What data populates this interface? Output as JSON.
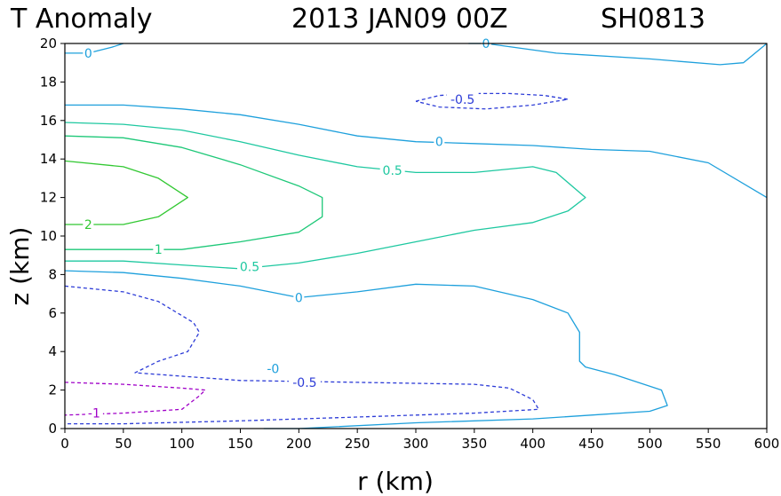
{
  "chart_data": {
    "type": "contour",
    "title": "T Anomaly",
    "datetime": "2013 JAN09 00Z",
    "storm_id": "SH0813",
    "xlabel": "r (km)",
    "ylabel": "z (km)",
    "xlim": [
      0,
      600
    ],
    "ylim": [
      0,
      20
    ],
    "x_ticks": [
      0,
      50,
      100,
      150,
      200,
      250,
      300,
      350,
      400,
      450,
      500,
      550,
      600
    ],
    "x_tick_labels": [
      "0",
      "50",
      "100",
      "150",
      "200",
      "250",
      "300",
      "350",
      "400",
      "450",
      "500",
      "550",
      "600"
    ],
    "y_ticks": [
      0,
      2,
      4,
      6,
      8,
      10,
      12,
      14,
      16,
      18,
      20
    ],
    "y_tick_labels": [
      "0",
      "2",
      "4",
      "6",
      "8",
      "10",
      "12",
      "14",
      "16",
      "18",
      "20"
    ],
    "colors": {
      "neg1": "#a000c8",
      "neg05": "#2d3cd7",
      "zero": "#1ea0dc",
      "pos05": "#1ec8a0",
      "pos1": "#1ec878",
      "pos2": "#32c832"
    },
    "contours": [
      {
        "name": "zero-top-left",
        "level": 0,
        "color_key": "zero",
        "dashed": false,
        "points": [
          [
            0,
            19.5
          ],
          [
            20,
            19.5
          ],
          [
            40,
            19.8
          ],
          [
            50,
            20
          ]
        ]
      },
      {
        "name": "zero-top-right",
        "level": 0,
        "color_key": "zero",
        "dashed": false,
        "points": [
          [
            345,
            20
          ],
          [
            360,
            20
          ],
          [
            420,
            19.5
          ],
          [
            500,
            19.2
          ],
          [
            560,
            18.9
          ],
          [
            580,
            19
          ],
          [
            600,
            20
          ]
        ]
      },
      {
        "name": "neg05-upper",
        "level": -0.5,
        "color_key": "neg05",
        "dashed": true,
        "points": [
          [
            300,
            17
          ],
          [
            320,
            17.3
          ],
          [
            350,
            17.4
          ],
          [
            380,
            17.4
          ],
          [
            410,
            17.3
          ],
          [
            430,
            17.1
          ],
          [
            400,
            16.8
          ],
          [
            360,
            16.6
          ],
          [
            320,
            16.7
          ],
          [
            300,
            17
          ]
        ]
      },
      {
        "name": "zero-upper",
        "level": 0,
        "color_key": "zero",
        "dashed": false,
        "points": [
          [
            0,
            16.8
          ],
          [
            50,
            16.8
          ],
          [
            100,
            16.6
          ],
          [
            150,
            16.3
          ],
          [
            200,
            15.8
          ],
          [
            250,
            15.2
          ],
          [
            300,
            14.9
          ],
          [
            350,
            14.8
          ],
          [
            400,
            14.7
          ],
          [
            450,
            14.5
          ],
          [
            500,
            14.4
          ],
          [
            550,
            13.8
          ],
          [
            600,
            12
          ]
        ]
      },
      {
        "name": "pos05-upper",
        "level": 0.5,
        "color_key": "pos05",
        "dashed": false,
        "points": [
          [
            0,
            15.9
          ],
          [
            50,
            15.8
          ],
          [
            100,
            15.5
          ],
          [
            150,
            14.9
          ],
          [
            200,
            14.2
          ],
          [
            250,
            13.6
          ],
          [
            300,
            13.3
          ],
          [
            350,
            13.3
          ],
          [
            400,
            13.6
          ],
          [
            420,
            13.3
          ],
          [
            445,
            12
          ],
          [
            430,
            11.3
          ],
          [
            400,
            10.7
          ],
          [
            350,
            10.3
          ],
          [
            300,
            9.7
          ],
          [
            250,
            9.1
          ],
          [
            200,
            8.6
          ],
          [
            150,
            8.3
          ],
          [
            100,
            8.5
          ],
          [
            50,
            8.7
          ],
          [
            0,
            8.7
          ]
        ]
      },
      {
        "name": "pos1",
        "level": 1,
        "color_key": "pos1",
        "dashed": false,
        "points": [
          [
            0,
            15.2
          ],
          [
            50,
            15.1
          ],
          [
            100,
            14.6
          ],
          [
            150,
            13.7
          ],
          [
            200,
            12.6
          ],
          [
            220,
            12
          ],
          [
            220,
            11
          ],
          [
            200,
            10.2
          ],
          [
            150,
            9.7
          ],
          [
            100,
            9.3
          ],
          [
            50,
            9.3
          ],
          [
            0,
            9.3
          ]
        ]
      },
      {
        "name": "pos2",
        "level": 2,
        "color_key": "pos2",
        "dashed": false,
        "points": [
          [
            0,
            13.9
          ],
          [
            50,
            13.6
          ],
          [
            80,
            13
          ],
          [
            105,
            12
          ],
          [
            80,
            11
          ],
          [
            50,
            10.6
          ],
          [
            0,
            10.6
          ]
        ]
      },
      {
        "name": "zero-lower",
        "level": 0,
        "color_key": "zero",
        "dashed": false,
        "points": [
          [
            0,
            8.2
          ],
          [
            50,
            8.1
          ],
          [
            100,
            7.8
          ],
          [
            150,
            7.4
          ],
          [
            200,
            6.8
          ],
          [
            250,
            7.1
          ],
          [
            300,
            7.5
          ],
          [
            350,
            7.4
          ],
          [
            400,
            6.7
          ],
          [
            430,
            6
          ],
          [
            440,
            5
          ],
          [
            440,
            3.5
          ],
          [
            445,
            3.2
          ],
          [
            470,
            2.8
          ],
          [
            510,
            2
          ],
          [
            515,
            1.2
          ],
          [
            500,
            0.9
          ],
          [
            450,
            0.7
          ],
          [
            400,
            0.5
          ],
          [
            300,
            0.3
          ],
          [
            200,
            0
          ],
          [
            170,
            0
          ]
        ]
      },
      {
        "name": "neg05-lower",
        "level": -0.5,
        "color_key": "neg05",
        "dashed": true,
        "points": [
          [
            0,
            7.4
          ],
          [
            50,
            7.1
          ],
          [
            80,
            6.6
          ],
          [
            110,
            5.5
          ],
          [
            115,
            5
          ],
          [
            105,
            4
          ],
          [
            80,
            3.5
          ],
          [
            60,
            2.9
          ],
          [
            150,
            2.5
          ],
          [
            250,
            2.4
          ],
          [
            350,
            2.3
          ],
          [
            380,
            2.1
          ],
          [
            400,
            1.5
          ],
          [
            405,
            1
          ],
          [
            350,
            0.8
          ],
          [
            250,
            0.6
          ],
          [
            150,
            0.4
          ],
          [
            50,
            0.25
          ],
          [
            0,
            0.25
          ]
        ]
      },
      {
        "name": "neg1",
        "level": -1,
        "color_key": "neg1",
        "dashed": true,
        "points": [
          [
            0,
            2.4
          ],
          [
            50,
            2.3
          ],
          [
            100,
            2.1
          ],
          [
            120,
            2
          ],
          [
            115,
            1.7
          ],
          [
            100,
            1
          ],
          [
            50,
            0.8
          ],
          [
            0,
            0.7
          ]
        ]
      }
    ],
    "contour_labels": [
      {
        "text": "0",
        "x": 20,
        "y": 19.5,
        "color_key": "zero"
      },
      {
        "text": "0",
        "x": 360,
        "y": 20,
        "color_key": "zero"
      },
      {
        "text": "-0.5",
        "x": 340,
        "y": 17.1,
        "color_key": "neg05"
      },
      {
        "text": "0",
        "x": 320,
        "y": 14.9,
        "color_key": "zero"
      },
      {
        "text": "0.5",
        "x": 280,
        "y": 13.4,
        "color_key": "pos05"
      },
      {
        "text": "2",
        "x": 20,
        "y": 10.6,
        "color_key": "pos2"
      },
      {
        "text": "1",
        "x": 80,
        "y": 9.3,
        "color_key": "pos1"
      },
      {
        "text": "0.5",
        "x": 158,
        "y": 8.4,
        "color_key": "pos05"
      },
      {
        "text": "0",
        "x": 200,
        "y": 6.8,
        "color_key": "zero"
      },
      {
        "text": "-0",
        "x": 178,
        "y": 3.1,
        "color_key": "zero"
      },
      {
        "text": "-0.5",
        "x": 205,
        "y": 2.4,
        "color_key": "neg05"
      },
      {
        "text": "-1",
        "x": 25,
        "y": 0.8,
        "color_key": "neg1"
      }
    ]
  }
}
